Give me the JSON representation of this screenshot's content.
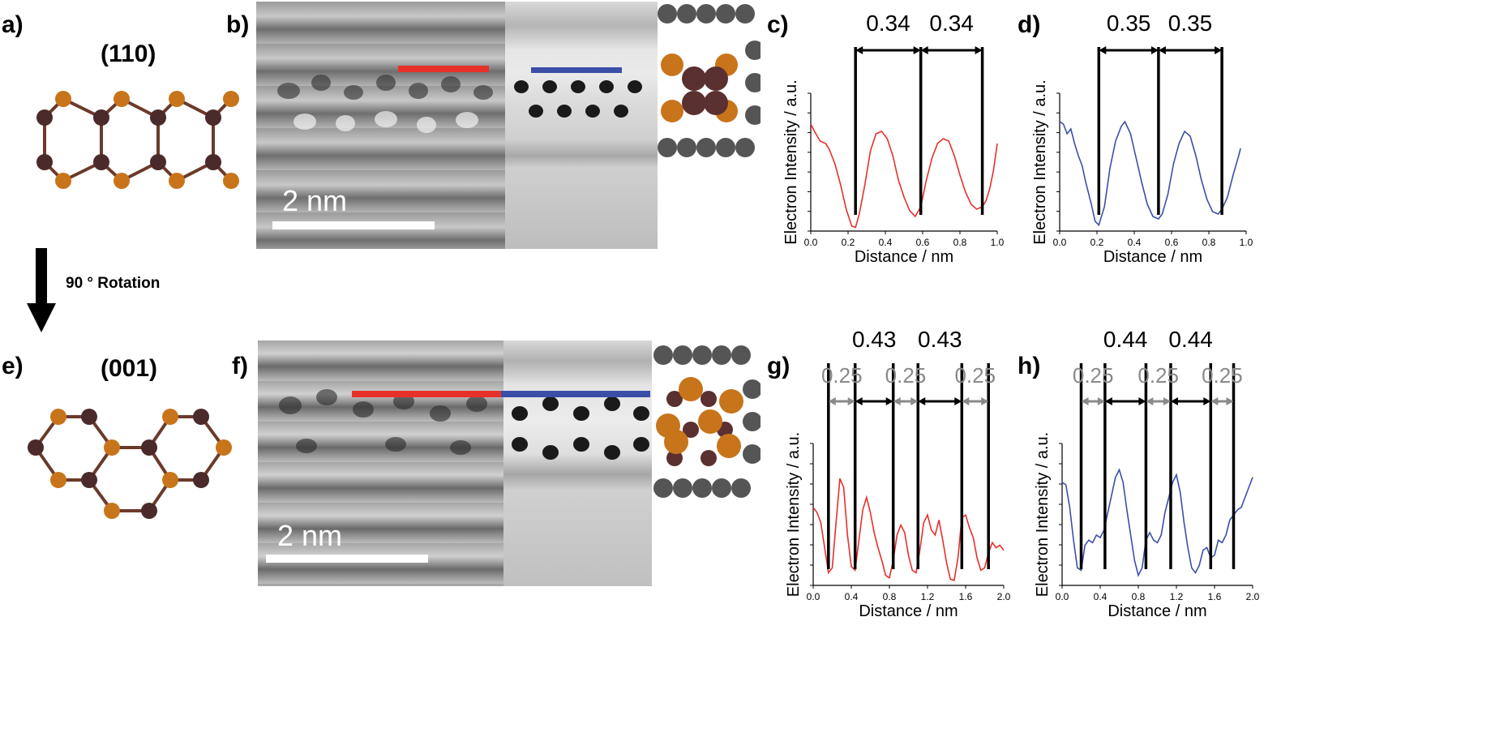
{
  "panel_labels": {
    "a": "a)",
    "b": "b)",
    "c": "c)",
    "d": "d)",
    "e": "e)",
    "f": "f)",
    "g": "g)",
    "h": "h)"
  },
  "structures": {
    "top_title": "(110)",
    "bottom_title": "(001)",
    "rotation_label": "90 ° Rotation"
  },
  "tem": {
    "scale_label_top": "2 nm",
    "scale_label_bottom": "2 nm"
  },
  "colors": {
    "atom_orange": "#c8741a",
    "atom_dark": "#4a2a2a",
    "red_profile": "#e8302a",
    "blue_profile": "#3b4fa8",
    "spacing_black": "#000000",
    "spacing_grey": "#8a8a8a",
    "nanotube_grey": "#555555"
  },
  "chart_data": [
    {
      "id": "c",
      "type": "line",
      "color_key": "red_profile",
      "xlabel": "Distance / nm",
      "ylabel": "Electron Intensity / a.u.",
      "xlim": [
        0,
        1.0
      ],
      "xticks": [
        "0.0",
        "0.2",
        "0.4",
        "0.6",
        "0.8",
        "1.0"
      ],
      "x": [
        0.0,
        0.02,
        0.05,
        0.08,
        0.1,
        0.13,
        0.16,
        0.19,
        0.22,
        0.24,
        0.26,
        0.29,
        0.32,
        0.35,
        0.38,
        0.41,
        0.44,
        0.47,
        0.5,
        0.53,
        0.56,
        0.59,
        0.62,
        0.65,
        0.68,
        0.71,
        0.74,
        0.77,
        0.8,
        0.83,
        0.86,
        0.89,
        0.92,
        0.94,
        0.96,
        0.98,
        1.0
      ],
      "y": [
        0.88,
        0.82,
        0.74,
        0.72,
        0.67,
        0.55,
        0.38,
        0.18,
        0.04,
        0.03,
        0.14,
        0.38,
        0.66,
        0.8,
        0.82,
        0.76,
        0.62,
        0.42,
        0.28,
        0.17,
        0.12,
        0.2,
        0.42,
        0.6,
        0.72,
        0.76,
        0.74,
        0.62,
        0.46,
        0.32,
        0.22,
        0.18,
        0.2,
        0.25,
        0.35,
        0.5,
        0.72
      ],
      "markers_black": [
        0.24,
        0.59,
        0.92
      ],
      "labels_black": [
        "0.34",
        "0.34"
      ],
      "marker_grey": [],
      "labels_grey": []
    },
    {
      "id": "d",
      "type": "line",
      "color_key": "blue_profile",
      "xlabel": "Distance / nm",
      "ylabel": "Electron Intensity / a.u.",
      "xlim": [
        0,
        1.0
      ],
      "xticks": [
        "0.0",
        "0.2",
        "0.4",
        "0.6",
        "0.8",
        "1.0"
      ],
      "x": [
        0.0,
        0.02,
        0.04,
        0.06,
        0.08,
        0.1,
        0.12,
        0.14,
        0.17,
        0.19,
        0.21,
        0.24,
        0.27,
        0.3,
        0.33,
        0.35,
        0.38,
        0.41,
        0.44,
        0.47,
        0.5,
        0.53,
        0.55,
        0.58,
        0.61,
        0.64,
        0.67,
        0.7,
        0.73,
        0.76,
        0.79,
        0.82,
        0.85,
        0.87,
        0.9,
        0.93,
        0.96,
        0.97
      ],
      "y": [
        0.9,
        0.88,
        0.8,
        0.84,
        0.72,
        0.62,
        0.54,
        0.4,
        0.22,
        0.08,
        0.05,
        0.2,
        0.52,
        0.74,
        0.86,
        0.9,
        0.8,
        0.6,
        0.4,
        0.22,
        0.12,
        0.1,
        0.14,
        0.3,
        0.55,
        0.72,
        0.82,
        0.78,
        0.62,
        0.42,
        0.26,
        0.16,
        0.14,
        0.18,
        0.28,
        0.46,
        0.62,
        0.68
      ],
      "markers_black": [
        0.21,
        0.53,
        0.87
      ],
      "labels_black": [
        "0.35",
        "0.35"
      ],
      "labels_grey": []
    },
    {
      "id": "g",
      "type": "line",
      "color_key": "red_profile",
      "xlabel": "Distance / nm",
      "ylabel": "Electron Intensity / a.u.",
      "xlim": [
        0,
        2.0
      ],
      "xticks": [
        "0.0",
        "0.4",
        "0.8",
        "1.2",
        "1.6",
        "2.0"
      ],
      "x": [
        0.0,
        0.04,
        0.08,
        0.12,
        0.16,
        0.2,
        0.24,
        0.28,
        0.32,
        0.36,
        0.4,
        0.44,
        0.48,
        0.52,
        0.56,
        0.6,
        0.64,
        0.68,
        0.72,
        0.76,
        0.8,
        0.84,
        0.88,
        0.92,
        0.96,
        1.0,
        1.04,
        1.08,
        1.12,
        1.16,
        1.2,
        1.24,
        1.28,
        1.32,
        1.36,
        1.4,
        1.44,
        1.48,
        1.52,
        1.56,
        1.6,
        1.64,
        1.68,
        1.72,
        1.76,
        1.8,
        1.84,
        1.88,
        1.92,
        1.96,
        2.0
      ],
      "y": [
        0.62,
        0.58,
        0.5,
        0.3,
        0.1,
        0.14,
        0.5,
        0.85,
        0.78,
        0.4,
        0.15,
        0.12,
        0.36,
        0.6,
        0.7,
        0.58,
        0.42,
        0.3,
        0.2,
        0.08,
        0.06,
        0.2,
        0.4,
        0.48,
        0.42,
        0.24,
        0.12,
        0.1,
        0.28,
        0.5,
        0.56,
        0.44,
        0.4,
        0.52,
        0.36,
        0.18,
        0.05,
        0.04,
        0.22,
        0.54,
        0.56,
        0.46,
        0.38,
        0.22,
        0.12,
        0.14,
        0.26,
        0.34,
        0.3,
        0.32,
        0.28
      ],
      "markers_black": [
        0.16,
        0.44,
        0.84,
        1.1,
        1.56,
        1.84
      ],
      "labels_black": [
        "0.43",
        "0.43"
      ],
      "labels_grey": [
        "0.25",
        "0.25",
        "0.25"
      ]
    },
    {
      "id": "h",
      "type": "line",
      "color_key": "blue_profile",
      "xlabel": "Distance / nm",
      "ylabel": "Electron Intensity / a.u.",
      "xlim": [
        0,
        2.0
      ],
      "xticks": [
        "0.0",
        "0.4",
        "0.8",
        "1.2",
        "1.6",
        "2.0"
      ],
      "x": [
        0.0,
        0.04,
        0.08,
        0.12,
        0.16,
        0.2,
        0.24,
        0.28,
        0.32,
        0.36,
        0.4,
        0.44,
        0.48,
        0.52,
        0.56,
        0.6,
        0.64,
        0.68,
        0.72,
        0.76,
        0.8,
        0.84,
        0.88,
        0.92,
        0.96,
        1.0,
        1.04,
        1.08,
        1.12,
        1.16,
        1.2,
        1.24,
        1.28,
        1.32,
        1.36,
        1.4,
        1.44,
        1.48,
        1.52,
        1.56,
        1.6,
        1.64,
        1.68,
        1.72,
        1.76,
        1.8,
        1.84,
        1.88,
        1.92,
        1.96,
        2.0
      ],
      "y": [
        0.82,
        0.8,
        0.62,
        0.36,
        0.14,
        0.12,
        0.32,
        0.36,
        0.34,
        0.4,
        0.38,
        0.44,
        0.58,
        0.72,
        0.86,
        0.92,
        0.82,
        0.6,
        0.4,
        0.2,
        0.08,
        0.14,
        0.36,
        0.42,
        0.36,
        0.34,
        0.4,
        0.58,
        0.7,
        0.82,
        0.88,
        0.74,
        0.5,
        0.3,
        0.14,
        0.1,
        0.16,
        0.28,
        0.3,
        0.22,
        0.24,
        0.36,
        0.34,
        0.4,
        0.52,
        0.56,
        0.6,
        0.62,
        0.7,
        0.78,
        0.86
      ],
      "markers_black": [
        0.2,
        0.45,
        0.88,
        1.14,
        1.56,
        1.8
      ],
      "labels_black": [
        "0.44",
        "0.44"
      ],
      "labels_grey": [
        "0.25",
        "0.25",
        "0.25"
      ]
    }
  ]
}
